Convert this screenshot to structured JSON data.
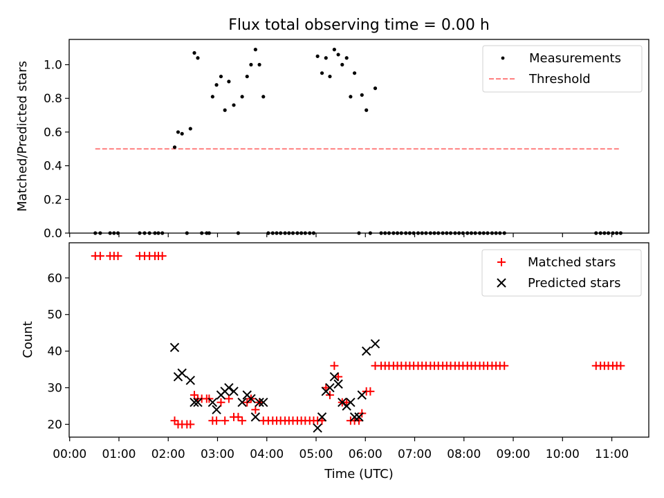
{
  "figure": {
    "title": "Flux total observing time = 0.00 h",
    "colors": {
      "measurement": "#000000",
      "threshold": "#ff7f7f",
      "matched": "#ff0000",
      "predicted": "#000000"
    }
  },
  "chart_data": [
    {
      "type": "scatter",
      "title": "Flux total observing time = 0.00 h",
      "xlabel": "",
      "ylabel": "Matched/Predicted stars",
      "x_unit": "hours (UTC)",
      "xlim": [
        -0.01,
        11.75
      ],
      "ylim": [
        0.0,
        1.15
      ],
      "yticks": [
        0.0,
        0.2,
        0.4,
        0.6,
        0.8,
        1.0
      ],
      "grid": false,
      "legend": "top-right",
      "series": [
        {
          "name": "Measurements",
          "style": "dot",
          "points": [
            [
              0.52,
              0
            ],
            [
              0.62,
              0
            ],
            [
              0.82,
              0
            ],
            [
              0.9,
              0
            ],
            [
              0.98,
              0
            ],
            [
              1.42,
              0
            ],
            [
              1.52,
              0
            ],
            [
              1.62,
              0
            ],
            [
              1.73,
              0
            ],
            [
              1.8,
              0
            ],
            [
              1.88,
              0
            ],
            [
              2.13,
              0.51
            ],
            [
              2.2,
              0.6
            ],
            [
              2.28,
              0.59
            ],
            [
              2.38,
              0
            ],
            [
              2.45,
              0.62
            ],
            [
              2.53,
              1.07
            ],
            [
              2.6,
              1.04
            ],
            [
              2.68,
              0
            ],
            [
              2.78,
              0
            ],
            [
              2.83,
              0
            ],
            [
              2.9,
              0.81
            ],
            [
              2.98,
              0.88
            ],
            [
              3.07,
              0.93
            ],
            [
              3.15,
              0.73
            ],
            [
              3.23,
              0.9
            ],
            [
              3.33,
              0.76
            ],
            [
              3.42,
              0
            ],
            [
              3.5,
              0.81
            ],
            [
              3.6,
              0.93
            ],
            [
              3.68,
              1.0
            ],
            [
              3.77,
              1.09
            ],
            [
              3.85,
              1.0
            ],
            [
              3.93,
              0.81
            ],
            [
              4.03,
              0
            ],
            [
              4.12,
              0
            ],
            [
              4.2,
              0
            ],
            [
              4.28,
              0
            ],
            [
              4.37,
              0
            ],
            [
              4.45,
              0
            ],
            [
              4.53,
              0
            ],
            [
              4.62,
              0
            ],
            [
              4.7,
              0
            ],
            [
              4.78,
              0
            ],
            [
              4.87,
              0
            ],
            [
              4.95,
              0
            ],
            [
              5.03,
              1.05
            ],
            [
              5.12,
              0.95
            ],
            [
              5.2,
              1.04
            ],
            [
              5.28,
              0.93
            ],
            [
              5.37,
              1.09
            ],
            [
              5.45,
              1.06
            ],
            [
              5.53,
              1.0
            ],
            [
              5.62,
              1.04
            ],
            [
              5.7,
              0.81
            ],
            [
              5.78,
              0.95
            ],
            [
              5.87,
              0
            ],
            [
              5.93,
              0.82
            ],
            [
              6.02,
              0.73
            ],
            [
              6.1,
              0
            ],
            [
              6.2,
              0.86
            ],
            [
              6.32,
              0
            ],
            [
              6.4,
              0
            ],
            [
              6.48,
              0
            ],
            [
              6.57,
              0
            ],
            [
              6.65,
              0
            ],
            [
              6.73,
              0
            ],
            [
              6.82,
              0
            ],
            [
              6.9,
              0
            ],
            [
              6.98,
              0
            ],
            [
              7.07,
              0
            ],
            [
              7.15,
              0
            ],
            [
              7.23,
              0
            ],
            [
              7.32,
              0
            ],
            [
              7.4,
              0
            ],
            [
              7.48,
              0
            ],
            [
              7.57,
              0
            ],
            [
              7.65,
              0
            ],
            [
              7.73,
              0
            ],
            [
              7.82,
              0
            ],
            [
              7.9,
              0
            ],
            [
              7.98,
              0
            ],
            [
              8.07,
              0
            ],
            [
              8.15,
              0
            ],
            [
              8.23,
              0
            ],
            [
              8.32,
              0
            ],
            [
              8.4,
              0
            ],
            [
              8.48,
              0
            ],
            [
              8.57,
              0
            ],
            [
              8.65,
              0
            ],
            [
              8.73,
              0
            ],
            [
              8.82,
              0
            ],
            [
              10.68,
              0
            ],
            [
              10.77,
              0
            ],
            [
              10.85,
              0
            ],
            [
              10.93,
              0
            ],
            [
              11.02,
              0
            ],
            [
              11.1,
              0
            ],
            [
              11.18,
              0
            ]
          ]
        },
        {
          "name": "Threshold",
          "style": "dashed-line",
          "points": [
            [
              0.52,
              0.5
            ],
            [
              11.18,
              0.5
            ]
          ]
        }
      ]
    },
    {
      "type": "scatter",
      "title": "",
      "xlabel": "Time (UTC)",
      "ylabel": "Count",
      "x_unit": "hours (UTC)",
      "xlim": [
        -0.01,
        11.75
      ],
      "ylim": [
        16.5,
        69.6
      ],
      "yticks": [
        20,
        30,
        40,
        50,
        60
      ],
      "xticklabels": [
        "00:00",
        "01:00",
        "02:00",
        "03:00",
        "04:00",
        "05:00",
        "06:00",
        "07:00",
        "08:00",
        "09:00",
        "10:00",
        "11:00"
      ],
      "grid": false,
      "legend": "top-right",
      "series": [
        {
          "name": "Matched stars",
          "style": "plus",
          "points": [
            [
              0.52,
              66
            ],
            [
              0.62,
              66
            ],
            [
              0.82,
              66
            ],
            [
              0.9,
              66
            ],
            [
              0.98,
              66
            ],
            [
              1.42,
              66
            ],
            [
              1.52,
              66
            ],
            [
              1.62,
              66
            ],
            [
              1.73,
              66
            ],
            [
              1.8,
              66
            ],
            [
              1.88,
              66
            ],
            [
              2.13,
              21
            ],
            [
              2.2,
              20
            ],
            [
              2.28,
              20
            ],
            [
              2.38,
              20
            ],
            [
              2.45,
              20
            ],
            [
              2.53,
              28
            ],
            [
              2.6,
              27
            ],
            [
              2.68,
              27
            ],
            [
              2.78,
              27
            ],
            [
              2.83,
              27
            ],
            [
              2.9,
              21
            ],
            [
              2.98,
              21
            ],
            [
              3.07,
              26
            ],
            [
              3.15,
              21
            ],
            [
              3.23,
              27
            ],
            [
              3.33,
              22
            ],
            [
              3.42,
              22
            ],
            [
              3.5,
              21
            ],
            [
              3.6,
              26
            ],
            [
              3.68,
              27
            ],
            [
              3.77,
              24
            ],
            [
              3.85,
              26
            ],
            [
              3.93,
              21
            ],
            [
              4.03,
              21
            ],
            [
              4.12,
              21
            ],
            [
              4.2,
              21
            ],
            [
              4.28,
              21
            ],
            [
              4.37,
              21
            ],
            [
              4.45,
              21
            ],
            [
              4.53,
              21
            ],
            [
              4.62,
              21
            ],
            [
              4.7,
              21
            ],
            [
              4.78,
              21
            ],
            [
              4.87,
              21
            ],
            [
              4.95,
              21
            ],
            [
              5.03,
              21
            ],
            [
              5.12,
              21
            ],
            [
              5.2,
              30
            ],
            [
              5.28,
              28
            ],
            [
              5.37,
              36
            ],
            [
              5.45,
              33
            ],
            [
              5.53,
              26
            ],
            [
              5.62,
              26
            ],
            [
              5.7,
              21
            ],
            [
              5.78,
              21
            ],
            [
              5.87,
              21
            ],
            [
              5.93,
              23
            ],
            [
              6.02,
              29
            ],
            [
              6.1,
              29
            ],
            [
              6.2,
              36
            ],
            [
              6.32,
              36
            ],
            [
              6.4,
              36
            ],
            [
              6.48,
              36
            ],
            [
              6.57,
              36
            ],
            [
              6.65,
              36
            ],
            [
              6.73,
              36
            ],
            [
              6.82,
              36
            ],
            [
              6.9,
              36
            ],
            [
              6.98,
              36
            ],
            [
              7.07,
              36
            ],
            [
              7.15,
              36
            ],
            [
              7.23,
              36
            ],
            [
              7.32,
              36
            ],
            [
              7.4,
              36
            ],
            [
              7.48,
              36
            ],
            [
              7.57,
              36
            ],
            [
              7.65,
              36
            ],
            [
              7.73,
              36
            ],
            [
              7.82,
              36
            ],
            [
              7.9,
              36
            ],
            [
              7.98,
              36
            ],
            [
              8.07,
              36
            ],
            [
              8.15,
              36
            ],
            [
              8.23,
              36
            ],
            [
              8.32,
              36
            ],
            [
              8.4,
              36
            ],
            [
              8.48,
              36
            ],
            [
              8.57,
              36
            ],
            [
              8.65,
              36
            ],
            [
              8.73,
              36
            ],
            [
              8.82,
              36
            ],
            [
              10.68,
              36
            ],
            [
              10.77,
              36
            ],
            [
              10.85,
              36
            ],
            [
              10.93,
              36
            ],
            [
              11.02,
              36
            ],
            [
              11.1,
              36
            ],
            [
              11.18,
              36
            ]
          ]
        },
        {
          "name": "Predicted stars",
          "style": "x",
          "points": [
            [
              2.13,
              41
            ],
            [
              2.2,
              33
            ],
            [
              2.28,
              34
            ],
            [
              2.45,
              32
            ],
            [
              2.53,
              26
            ],
            [
              2.6,
              26
            ],
            [
              2.9,
              26
            ],
            [
              2.98,
              24
            ],
            [
              3.07,
              28
            ],
            [
              3.15,
              29
            ],
            [
              3.23,
              30
            ],
            [
              3.33,
              29
            ],
            [
              3.5,
              26
            ],
            [
              3.6,
              28
            ],
            [
              3.68,
              27
            ],
            [
              3.77,
              22
            ],
            [
              3.85,
              26
            ],
            [
              3.93,
              26
            ],
            [
              5.03,
              19
            ],
            [
              5.12,
              22
            ],
            [
              5.2,
              29
            ],
            [
              5.28,
              30
            ],
            [
              5.37,
              33
            ],
            [
              5.45,
              31
            ],
            [
              5.53,
              26
            ],
            [
              5.62,
              25
            ],
            [
              5.7,
              26
            ],
            [
              5.78,
              22
            ],
            [
              5.87,
              22
            ],
            [
              5.93,
              28
            ],
            [
              6.02,
              40
            ],
            [
              6.2,
              42
            ]
          ]
        }
      ]
    }
  ]
}
